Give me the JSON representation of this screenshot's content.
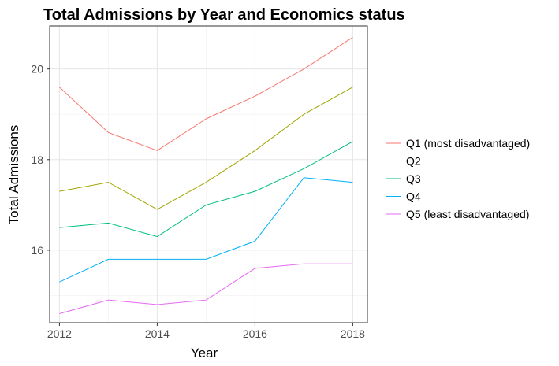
{
  "chart_data": {
    "type": "line",
    "title": "Total Admissions by Year and  Economics status",
    "xlabel": "Year",
    "ylabel": "Total Admissions",
    "xlim": [
      2011.8,
      2018.3
    ],
    "ylim": [
      14.4,
      20.95
    ],
    "x_ticks": [
      2012,
      2014,
      2016,
      2018
    ],
    "y_ticks": [
      16,
      18,
      20
    ],
    "grid": true,
    "legend_position": "right",
    "x": [
      2012,
      2013,
      2014,
      2015,
      2016,
      2017,
      2018
    ],
    "series": [
      {
        "name": "Q1 (most disadvantaged)",
        "color": "#F8766D",
        "values": [
          19.6,
          18.6,
          18.2,
          18.9,
          19.4,
          20.0,
          20.7
        ]
      },
      {
        "name": "Q2",
        "color": "#A3A500",
        "values": [
          17.3,
          17.5,
          16.9,
          17.5,
          18.2,
          19.0,
          19.6
        ]
      },
      {
        "name": "Q3",
        "color": "#00BF7D",
        "values": [
          16.5,
          16.6,
          16.3,
          17.0,
          17.3,
          17.8,
          18.4
        ]
      },
      {
        "name": "Q4",
        "color": "#00B0F6",
        "values": [
          15.3,
          15.8,
          15.8,
          15.8,
          16.2,
          17.6,
          17.5
        ]
      },
      {
        "name": "Q5 (least disadvantaged)",
        "color": "#E76BF3",
        "values": [
          14.6,
          14.9,
          14.8,
          14.9,
          15.6,
          15.7,
          15.7
        ]
      }
    ]
  }
}
